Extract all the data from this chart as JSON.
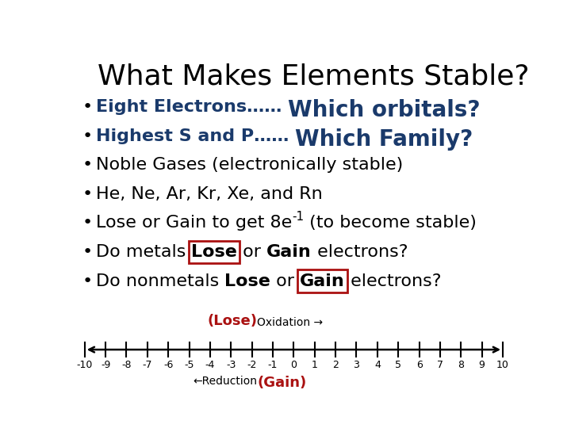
{
  "title": "What Makes Elements Stable?",
  "title_fontsize": 26,
  "title_color": "#000000",
  "bg_color": "#ffffff",
  "bullet_items": [
    {
      "type": "extra",
      "text": "Eight Electrons……",
      "extra": "Which orbitals?",
      "extra_color": "#1a3a6b",
      "text_bold": true,
      "text_fs": 16,
      "extra_fs": 20
    },
    {
      "type": "extra",
      "text": "Highest S and P……",
      "extra": "Which Family?",
      "extra_color": "#1a3a6b",
      "text_bold": true,
      "text_fs": 16,
      "extra_fs": 20
    },
    {
      "type": "simple",
      "text": "Noble Gases (electronically stable)",
      "bold": false,
      "fs": 16
    },
    {
      "type": "simple",
      "text": "He, Ne, Ar, Kr, Xe, and Rn",
      "bold": false,
      "fs": 16
    },
    {
      "type": "superscript",
      "text": "Lose or Gain to get 8e",
      "superscript": "-1",
      "suffix": " (to become stable)",
      "fs": 16
    },
    {
      "type": "parts",
      "parts": [
        {
          "t": "Do metals ",
          "bold": false,
          "box": false
        },
        {
          "t": "Lose",
          "bold": true,
          "box": true
        },
        {
          "t": " or ",
          "bold": false,
          "box": false
        },
        {
          "t": "Gain",
          "bold": true,
          "box": false
        },
        {
          "t": " electrons?",
          "bold": false,
          "box": false
        }
      ],
      "fs": 16
    },
    {
      "type": "parts",
      "parts": [
        {
          "t": "Do nonmetals ",
          "bold": false,
          "box": false
        },
        {
          "t": "Lose",
          "bold": true,
          "box": false
        },
        {
          "t": " or ",
          "bold": false,
          "box": false
        },
        {
          "t": "Gain",
          "bold": true,
          "box": true
        },
        {
          "t": " electrons?",
          "bold": false,
          "box": false
        }
      ],
      "fs": 16
    }
  ],
  "bullet_color": "#000000",
  "box_color": "#aa1111",
  "oxidation_color": "#aa1111",
  "gain_color": "#aa1111",
  "number_line": {
    "xmin": -10,
    "xmax": 10,
    "label_fontsize": 9
  }
}
